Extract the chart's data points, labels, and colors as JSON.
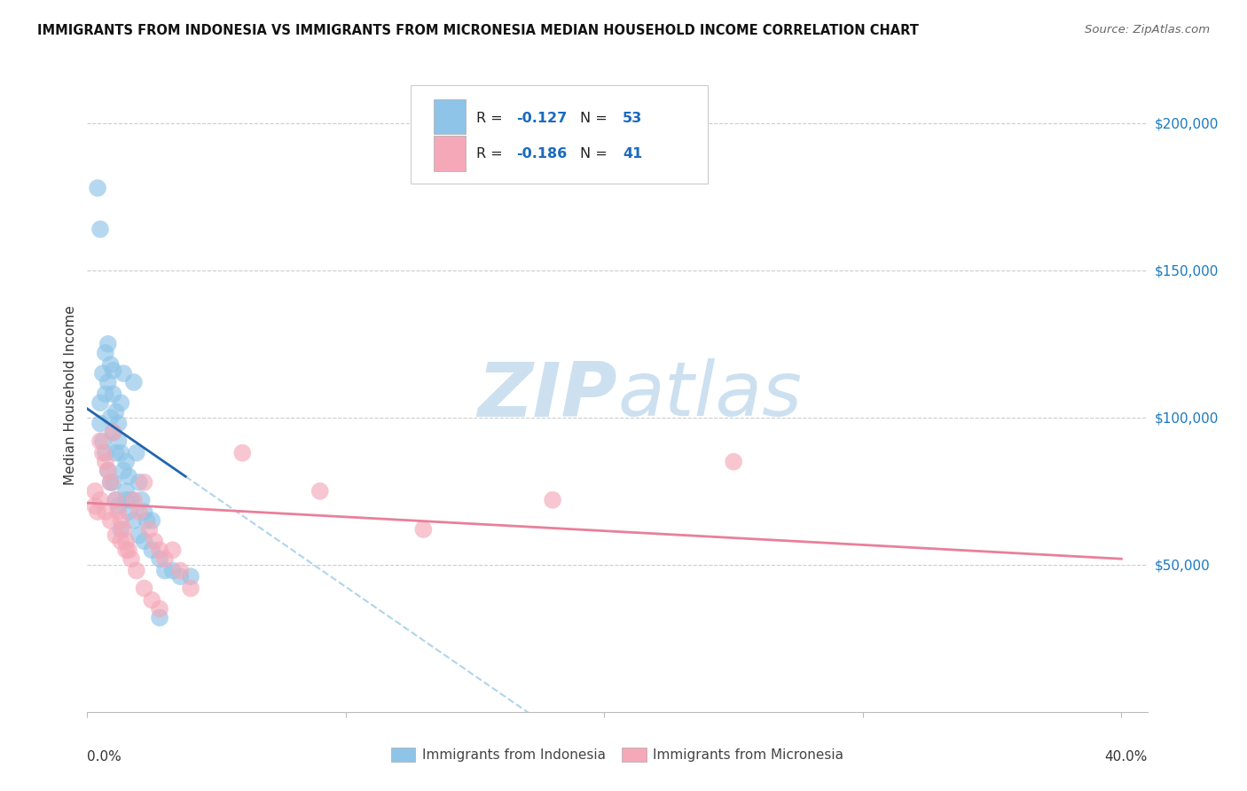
{
  "title": "IMMIGRANTS FROM INDONESIA VS IMMIGRANTS FROM MICRONESIA MEDIAN HOUSEHOLD INCOME CORRELATION CHART",
  "source": "Source: ZipAtlas.com",
  "ylabel": "Median Household Income",
  "y_tick_labels": [
    "$50,000",
    "$100,000",
    "$150,000",
    "$200,000"
  ],
  "y_tick_values": [
    50000,
    100000,
    150000,
    200000
  ],
  "ylim": [
    0,
    215000
  ],
  "xlim": [
    0.0,
    0.41
  ],
  "legend_label1": "Immigrants from Indonesia",
  "legend_label2": "Immigrants from Micronesia",
  "r1": "-0.127",
  "n1": "53",
  "r2": "-0.186",
  "n2": "41",
  "color_blue": "#8ec4e8",
  "color_pink": "#f4a8b8",
  "color_blue_line": "#2166ac",
  "color_pink_line": "#e8809a",
  "color_dashed": "#a8d0e8",
  "watermark_color": "#cce0f0",
  "indo_x": [
    0.004,
    0.005,
    0.005,
    0.006,
    0.007,
    0.007,
    0.008,
    0.008,
    0.009,
    0.009,
    0.01,
    0.01,
    0.01,
    0.011,
    0.011,
    0.012,
    0.012,
    0.013,
    0.013,
    0.014,
    0.014,
    0.015,
    0.015,
    0.016,
    0.017,
    0.018,
    0.019,
    0.02,
    0.021,
    0.022,
    0.023,
    0.025,
    0.005,
    0.006,
    0.007,
    0.008,
    0.009,
    0.01,
    0.011,
    0.012,
    0.013,
    0.015,
    0.016,
    0.018,
    0.02,
    0.022,
    0.025,
    0.028,
    0.03,
    0.033,
    0.036,
    0.04,
    0.028
  ],
  "indo_y": [
    178000,
    164000,
    105000,
    115000,
    108000,
    122000,
    125000,
    112000,
    118000,
    100000,
    108000,
    95000,
    116000,
    102000,
    88000,
    92000,
    98000,
    88000,
    105000,
    82000,
    115000,
    85000,
    75000,
    80000,
    72000,
    112000,
    88000,
    78000,
    72000,
    68000,
    65000,
    65000,
    98000,
    92000,
    88000,
    82000,
    78000,
    78000,
    72000,
    70000,
    62000,
    72000,
    68000,
    65000,
    60000,
    58000,
    55000,
    52000,
    48000,
    48000,
    46000,
    46000,
    32000
  ],
  "micro_x": [
    0.003,
    0.004,
    0.005,
    0.006,
    0.007,
    0.008,
    0.009,
    0.01,
    0.011,
    0.012,
    0.013,
    0.014,
    0.015,
    0.016,
    0.018,
    0.02,
    0.022,
    0.024,
    0.026,
    0.028,
    0.03,
    0.033,
    0.036,
    0.04,
    0.003,
    0.005,
    0.007,
    0.009,
    0.011,
    0.013,
    0.015,
    0.017,
    0.019,
    0.022,
    0.025,
    0.028,
    0.18,
    0.25,
    0.06,
    0.09,
    0.13
  ],
  "micro_y": [
    70000,
    68000,
    92000,
    88000,
    85000,
    82000,
    78000,
    95000,
    72000,
    68000,
    65000,
    62000,
    58000,
    55000,
    72000,
    68000,
    78000,
    62000,
    58000,
    55000,
    52000,
    55000,
    48000,
    42000,
    75000,
    72000,
    68000,
    65000,
    60000,
    58000,
    55000,
    52000,
    48000,
    42000,
    38000,
    35000,
    72000,
    85000,
    88000,
    75000,
    62000
  ]
}
